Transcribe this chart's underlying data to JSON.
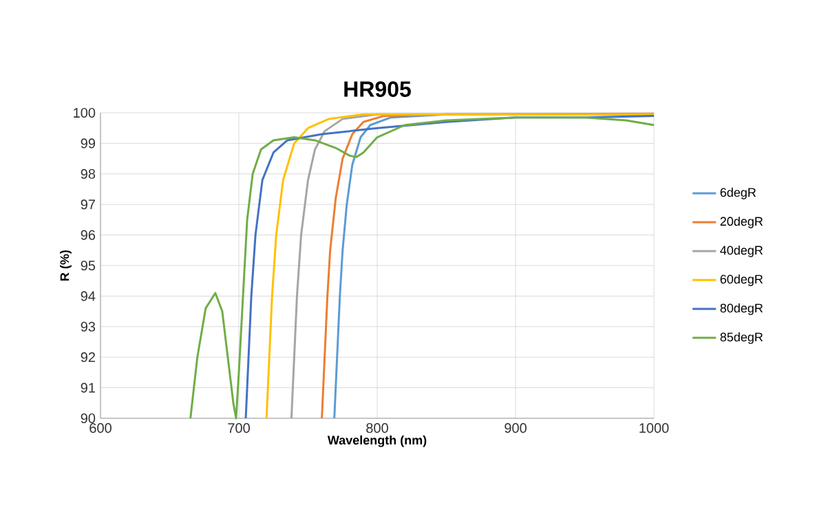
{
  "chart_data": {
    "type": "line",
    "title": "HR905",
    "xlabel": "Wavelength (nm)",
    "ylabel": "R (%)",
    "xlim": [
      600,
      1000
    ],
    "xticks": [
      600,
      700,
      800,
      900,
      1000
    ],
    "ylim": [
      90,
      100
    ],
    "yticks": [
      90,
      91,
      92,
      93,
      94,
      95,
      96,
      97,
      98,
      99,
      100
    ],
    "grid": true,
    "legend": "right",
    "marker": "none",
    "line_style": "solid",
    "series": [
      {
        "name": "6degR",
        "color": "#5b9bd5",
        "x": [
          769,
          771,
          773,
          775,
          778,
          782,
          788,
          795,
          810,
          850,
          1000
        ],
        "values": [
          90,
          92,
          94,
          95.5,
          97,
          98.3,
          99.2,
          99.6,
          99.85,
          99.95,
          99.95
        ]
      },
      {
        "name": "20degR",
        "color": "#ed7d31",
        "x": [
          760,
          762,
          764,
          766,
          770,
          775,
          782,
          790,
          805,
          850,
          1000
        ],
        "values": [
          90,
          92,
          94,
          95.5,
          97.2,
          98.5,
          99.3,
          99.7,
          99.9,
          99.95,
          99.97
        ]
      },
      {
        "name": "40degR",
        "color": "#a5a5a5",
        "x": [
          738,
          740,
          742,
          745,
          750,
          755,
          762,
          775,
          800,
          1000
        ],
        "values": [
          90,
          92,
          94,
          96,
          97.8,
          98.8,
          99.4,
          99.8,
          99.95,
          99.95
        ]
      },
      {
        "name": "60degR",
        "color": "#ffc000",
        "x": [
          720,
          722,
          724,
          727,
          732,
          740,
          750,
          765,
          790,
          1000
        ],
        "values": [
          90,
          92,
          94,
          96,
          97.8,
          99,
          99.5,
          99.8,
          99.95,
          99.95
        ]
      },
      {
        "name": "80degR",
        "color": "#4472c4",
        "x": [
          705,
          707,
          709,
          712,
          717,
          725,
          735,
          760,
          800,
          850,
          900,
          950,
          1000
        ],
        "values": [
          90,
          92,
          94,
          96,
          97.8,
          98.7,
          99.1,
          99.3,
          99.5,
          99.7,
          99.85,
          99.85,
          99.9
        ]
      },
      {
        "name": "85degR",
        "color": "#70ad47",
        "x": [
          665,
          670,
          676,
          683,
          688,
          692,
          696,
          698,
          700,
          703,
          706,
          710,
          716,
          725,
          740,
          755,
          770,
          780,
          785,
          790,
          800,
          820,
          850,
          900,
          950,
          980,
          1000
        ],
        "values": [
          90,
          92,
          93.6,
          94.1,
          93.5,
          92,
          90.5,
          90,
          91.5,
          94,
          96.5,
          98,
          98.8,
          99.1,
          99.2,
          99.1,
          98.85,
          98.6,
          98.55,
          98.7,
          99.2,
          99.6,
          99.75,
          99.85,
          99.85,
          99.75,
          99.6
        ]
      }
    ]
  }
}
